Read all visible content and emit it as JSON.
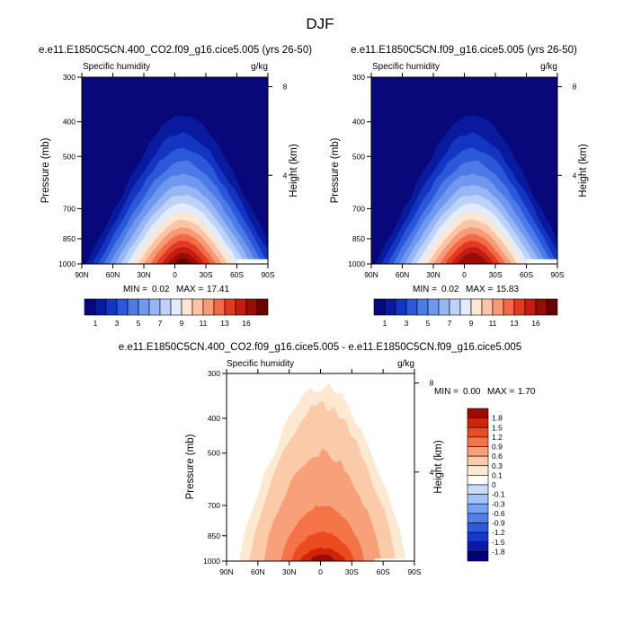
{
  "page_title": "DJF",
  "colors": {
    "full_scale": [
      "#08087a",
      "#0a1a9e",
      "#1236c2",
      "#2a58d8",
      "#4c7ae6",
      "#7098ee",
      "#96b6f4",
      "#bcd2fa",
      "#e2ecfc",
      "#fde6d2",
      "#fbc4a6",
      "#f79a76",
      "#f26a48",
      "#e03a22",
      "#c41c10",
      "#9a0c06",
      "#6a0200"
    ],
    "diff_scale": [
      "#00007e",
      "#0a1aa8",
      "#1438cc",
      "#2c5ae0",
      "#5080ec",
      "#78a2f2",
      "#a2c2f8",
      "#c8dcfc",
      "#ffffff",
      "#fde8d2",
      "#fbcaa8",
      "#f8a07a",
      "#f47448",
      "#ec4a20",
      "#d02408",
      "#9c0a02"
    ]
  },
  "chart_data": [
    {
      "name": "panel-co2",
      "type": "heatmap",
      "title": "e.e11.E1850C5CN.400_CO2.f09_g16.cice5.005 (yrs 26-50)",
      "left_label": "Specific humidity",
      "right_label": "g/kg",
      "ylabel": "Pressure (mb)",
      "y2label": "Height (km)",
      "y_ticks": [
        300,
        400,
        500,
        700,
        850,
        1000
      ],
      "y_tick_labels": [
        "300",
        "400",
        "500",
        "700",
        "850",
        "1000"
      ],
      "y2_ticks": [
        8,
        4
      ],
      "y2_tick_labels": [
        "8",
        "4"
      ],
      "x_ticks": [
        -90,
        -60,
        -30,
        0,
        30,
        60,
        90
      ],
      "x_tick_labels": [
        "90N",
        "60N",
        "30N",
        "0",
        "30S",
        "60S",
        "90S"
      ],
      "xlim": [
        -90,
        90
      ],
      "ylim": [
        300,
        1000
      ],
      "min_label": "MIN =",
      "min_value": "0.02",
      "max_label": "MAX =",
      "max_value": "17.41",
      "peak": 17.41,
      "colorbar_labels": [
        "1",
        "3",
        "5",
        "7",
        "9",
        "11",
        "13",
        "16"
      ]
    },
    {
      "name": "panel-control",
      "type": "heatmap",
      "title": "e.e11.E1850C5CN.f09_g16.cice5.005 (yrs 26-50)",
      "left_label": "Specific humidity",
      "right_label": "g/kg",
      "ylabel": "Pressure (mb)",
      "y2label": "Height (km)",
      "y_ticks": [
        300,
        400,
        500,
        700,
        850,
        1000
      ],
      "y_tick_labels": [
        "300",
        "400",
        "500",
        "700",
        "850",
        "1000"
      ],
      "y2_ticks": [
        8,
        4
      ],
      "y2_tick_labels": [
        "8",
        "4"
      ],
      "x_ticks": [
        -90,
        -60,
        -30,
        0,
        30,
        60,
        90
      ],
      "x_tick_labels": [
        "90N",
        "60N",
        "30N",
        "0",
        "30S",
        "60S",
        "90S"
      ],
      "xlim": [
        -90,
        90
      ],
      "ylim": [
        300,
        1000
      ],
      "min_label": "MIN =",
      "min_value": "0.02",
      "max_label": "MAX =",
      "max_value": "15.83",
      "peak": 15.83,
      "colorbar_labels": [
        "1",
        "3",
        "5",
        "7",
        "9",
        "11",
        "13",
        "16"
      ]
    },
    {
      "name": "panel-diff",
      "type": "heatmap",
      "title": "e.e11.E1850C5CN.400_CO2.f09_g16.cice5.005 - e.e11.E1850C5CN.f09_g16.cice5.005",
      "left_label": "Specific humidity",
      "right_label": "g/kg",
      "ylabel": "Pressure (mb)",
      "y2label": "Height (km)",
      "y_ticks": [
        300,
        400,
        500,
        700,
        850,
        1000
      ],
      "y_tick_labels": [
        "300",
        "400",
        "500",
        "700",
        "850",
        "1000"
      ],
      "y2_ticks": [
        8,
        4
      ],
      "y2_tick_labels": [
        "8",
        "4"
      ],
      "x_ticks": [
        -90,
        -60,
        -30,
        0,
        30,
        60,
        90
      ],
      "x_tick_labels": [
        "90N",
        "60N",
        "30N",
        "0",
        "30S",
        "60S",
        "90S"
      ],
      "xlim": [
        -90,
        90
      ],
      "ylim": [
        300,
        1000
      ],
      "min_label": "MIN =",
      "min_value": "0.00",
      "max_label": "MAX =",
      "max_value": "1.70",
      "peak": 1.7,
      "colorbar_labels": [
        "1.8",
        "1.5",
        "1.2",
        "0.9",
        "0.6",
        "0.3",
        "0.1",
        "0",
        "-0.1",
        "-0.3",
        "-0.6",
        "-0.9",
        "-1.2",
        "-1.5",
        "-1.8"
      ]
    }
  ]
}
